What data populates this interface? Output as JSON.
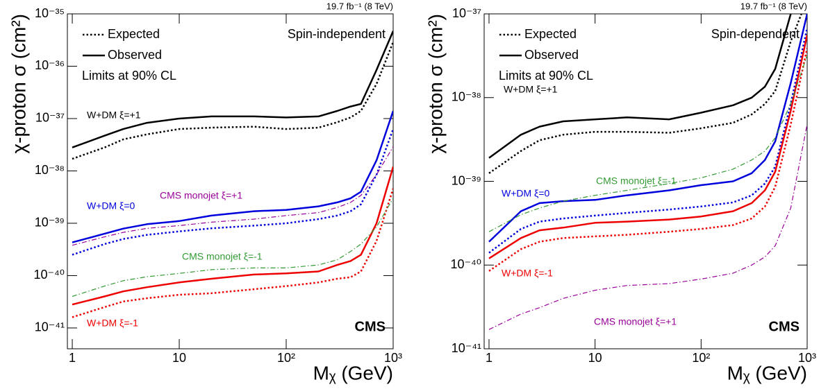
{
  "chart_data": [
    {
      "type": "line",
      "log_x": true,
      "log_y": true,
      "header_right": "19.7 fb⁻¹ (8 TeV)",
      "xlabel": "Mᵪ (GeV)",
      "ylabel": "χ-proton σ (cm²)",
      "annotations": [
        "Spin-independent",
        "Limits at 90% CL",
        "CMS"
      ],
      "legend": [
        {
          "label": "Expected",
          "style": "dotted"
        },
        {
          "label": "Observed",
          "style": "solid"
        }
      ],
      "xlim": [
        0.9,
        1000
      ],
      "ylim": [
        4e-42,
        1e-35
      ],
      "xticks": [
        1,
        10,
        {
          "value": 100,
          "label": "10²"
        },
        {
          "value": 1000,
          "label": "10³"
        }
      ],
      "yticks": [
        {
          "value": 1e-41,
          "label": "10⁻⁴¹"
        },
        {
          "value": 1e-40,
          "label": "10⁻⁴⁰"
        },
        {
          "value": 1e-39,
          "label": "10⁻³⁹"
        },
        {
          "value": 1e-38,
          "label": "10⁻³⁸"
        },
        {
          "value": 1e-37,
          "label": "10⁻³⁷"
        },
        {
          "value": 1e-36,
          "label": "10⁻³⁶"
        },
        {
          "value": 1e-35,
          "label": "10⁻³⁵"
        }
      ],
      "x": [
        1,
        2,
        3,
        5,
        10,
        20,
        50,
        100,
        200,
        300,
        400,
        500,
        700,
        1000
      ],
      "series": [
        {
          "name": "W+DM ξ=+1",
          "color": "#000000",
          "style": "solid",
          "values": [
            2.8e-38,
            4.7e-38,
            6.3e-38,
            8.3e-38,
            1e-37,
            1.1e-37,
            1.1e-37,
            1.05e-37,
            1.1e-37,
            1.4e-37,
            1.7e-37,
            1.9e-37,
            8.5e-37,
            4.7e-36
          ]
        },
        {
          "color": "#000000",
          "style": "dotted",
          "values": [
            1.7e-38,
            2.8e-38,
            4e-38,
            5e-38,
            6.3e-38,
            6.7e-38,
            7e-38,
            6.3e-38,
            6.7e-38,
            8.5e-38,
            1.05e-37,
            1.4e-37,
            4.6e-37,
            2.9e-36
          ]
        },
        {
          "name": "W+DM ξ=0",
          "color": "#0000dd",
          "style": "solid",
          "values": [
            4.3e-40,
            6.3e-40,
            7.9e-40,
            9.6e-40,
            1.1e-39,
            1.4e-39,
            1.7e-39,
            1.8e-39,
            2.1e-39,
            2.5e-39,
            3e-39,
            4e-39,
            1.6e-38,
            1.4e-37
          ]
        },
        {
          "color": "#0000dd",
          "style": "dotted",
          "values": [
            2.5e-40,
            4e-40,
            5e-40,
            6e-40,
            7e-40,
            8e-40,
            9e-40,
            1e-39,
            1.2e-39,
            1.4e-39,
            1.7e-39,
            2.3e-39,
            8.5e-39,
            6.3e-38
          ]
        },
        {
          "name": "W+DM ξ=-1",
          "color": "#ee0000",
          "style": "solid",
          "values": [
            2.8e-41,
            4e-41,
            5e-41,
            6e-41,
            7.4e-41,
            8.7e-41,
            1.05e-40,
            1.1e-40,
            1.2e-40,
            1.6e-40,
            1.9e-40,
            2.5e-40,
            1e-39,
            1.2e-38
          ]
        },
        {
          "color": "#ee0000",
          "style": "dotted",
          "values": [
            1.6e-41,
            2.5e-41,
            3.2e-41,
            3.7e-41,
            4.3e-41,
            4.6e-41,
            5.5e-41,
            6.3e-41,
            7.4e-41,
            8.7e-41,
            9.3e-41,
            1.2e-40,
            4.6e-40,
            4.6e-39
          ]
        },
        {
          "name": "CMS monojet ξ=+1",
          "color": "#990099",
          "style": "dashdot",
          "values": [
            3.8e-40,
            5.5e-40,
            6.7e-40,
            8e-40,
            9e-40,
            1.05e-39,
            1.2e-39,
            1.4e-39,
            1.6e-39,
            2e-39,
            2.5e-39,
            3.4e-39,
            8.5e-39,
            2.9e-38
          ]
        },
        {
          "name": "CMS monojet ξ=-1",
          "color": "#339933",
          "style": "dashdot",
          "values": [
            4e-41,
            6.3e-41,
            8e-41,
            9.5e-41,
            1.1e-40,
            1.3e-40,
            1.4e-40,
            1.4e-40,
            1.6e-40,
            2e-40,
            2.9e-40,
            4e-40,
            8.5e-40,
            3e-39
          ]
        }
      ]
    },
    {
      "type": "line",
      "log_x": true,
      "log_y": true,
      "header_right": "19.7 fb⁻¹ (8 TeV)",
      "xlabel": "Mᵪ (GeV)",
      "ylabel": "χ-proton σ (cm²)",
      "annotations": [
        "Spin-dependent",
        "Limits at 90% CL",
        "CMS"
      ],
      "legend": [
        {
          "label": "Expected",
          "style": "dotted"
        },
        {
          "label": "Observed",
          "style": "solid"
        }
      ],
      "xlim": [
        0.9,
        1000
      ],
      "ylim": [
        1e-41,
        1e-37
      ],
      "xticks": [
        1,
        10,
        {
          "value": 100,
          "label": "10²"
        },
        {
          "value": 1000,
          "label": "10³"
        }
      ],
      "yticks": [
        {
          "value": 1e-41,
          "label": "10⁻⁴¹"
        },
        {
          "value": 1e-40,
          "label": "10⁻⁴⁰"
        },
        {
          "value": 1e-39,
          "label": "10⁻³⁹"
        },
        {
          "value": 1e-38,
          "label": "10⁻³⁸"
        },
        {
          "value": 1e-37,
          "label": "10⁻³⁷"
        }
      ],
      "x": [
        1,
        2,
        3,
        5,
        10,
        20,
        50,
        100,
        200,
        300,
        400,
        500,
        700,
        1000
      ],
      "series": [
        {
          "name": "W+DM ξ=+1",
          "color": "#000000",
          "style": "solid",
          "values": [
            1.9e-39,
            3.6e-39,
            4.5e-39,
            5.2e-39,
            5.5e-39,
            5.8e-39,
            5.5e-39,
            6.6e-39,
            8.1e-39,
            1e-38,
            1.35e-38,
            2.2e-38,
            1e-37,
            3e-37
          ]
        },
        {
          "color": "#000000",
          "style": "dotted",
          "values": [
            1.25e-39,
            2.3e-39,
            3.1e-39,
            3.6e-39,
            3.9e-39,
            3.9e-39,
            3.8e-39,
            4.3e-39,
            5e-39,
            6.3e-39,
            8.4e-39,
            1.2e-38,
            4.7e-38,
            1.5e-37
          ]
        },
        {
          "name": "W+DM ξ=0",
          "color": "#0000dd",
          "style": "solid",
          "values": [
            1.9e-40,
            4.4e-40,
            5.5e-40,
            5.8e-40,
            6e-40,
            6.8e-40,
            7.8e-40,
            9e-40,
            1e-39,
            1.25e-39,
            1.8e-39,
            3e-39,
            1.5e-38,
            1e-37
          ]
        },
        {
          "color": "#0000dd",
          "style": "dotted",
          "values": [
            1.4e-40,
            2.7e-40,
            3.3e-40,
            3.6e-40,
            3.9e-40,
            4.2e-40,
            4.6e-40,
            5e-40,
            5.6e-40,
            6.8e-40,
            9.4e-40,
            1.5e-39,
            8.5e-39,
            6.8e-38
          ]
        },
        {
          "name": "W+DM ξ=-1",
          "color": "#ee0000",
          "style": "solid",
          "values": [
            1.2e-40,
            2.1e-40,
            2.6e-40,
            2.8e-40,
            3.2e-40,
            3.3e-40,
            3.5e-40,
            3.8e-40,
            4.4e-40,
            5.5e-40,
            7.8e-40,
            1.3e-39,
            7e-39,
            5.6e-38
          ]
        },
        {
          "color": "#ee0000",
          "style": "dotted",
          "values": [
            8.5e-41,
            1.55e-40,
            1.9e-40,
            2.1e-40,
            2.2e-40,
            2.3e-40,
            2.5e-40,
            2.7e-40,
            3e-40,
            3.6e-40,
            5e-40,
            8.6e-40,
            4.8e-39,
            3.9e-38
          ]
        },
        {
          "name": "CMS monojet ξ=+1",
          "color": "#990099",
          "style": "dashdot",
          "values": [
            1.7e-41,
            2.6e-41,
            3.1e-41,
            4e-41,
            5e-41,
            5.7e-41,
            6e-41,
            6.8e-41,
            8e-41,
            1e-40,
            1.25e-40,
            1.7e-40,
            4.8e-40,
            4.8e-39
          ]
        },
        {
          "name": "CMS monojet ξ=-1",
          "color": "#339933",
          "style": "dashdot",
          "values": [
            2.5e-40,
            4e-40,
            4.8e-40,
            5.8e-40,
            6.8e-40,
            7.8e-40,
            9.4e-40,
            1.1e-39,
            1.4e-39,
            1.8e-39,
            2.3e-39,
            3.3e-39,
            8.5e-39,
            3.2e-38
          ]
        }
      ]
    }
  ]
}
